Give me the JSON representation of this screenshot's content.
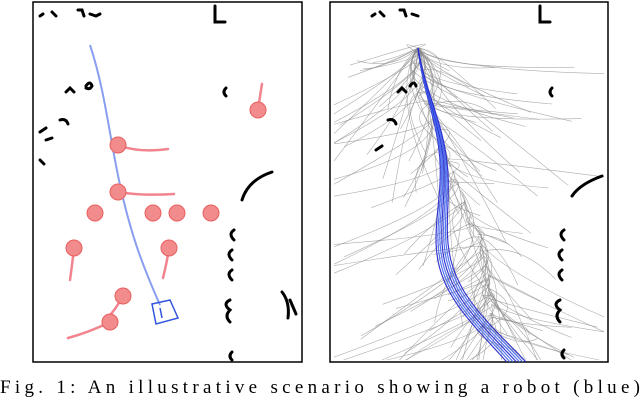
{
  "figure": {
    "caption": "Fig. 1: An illustrative scenario showing a robot (blue)"
  }
}
